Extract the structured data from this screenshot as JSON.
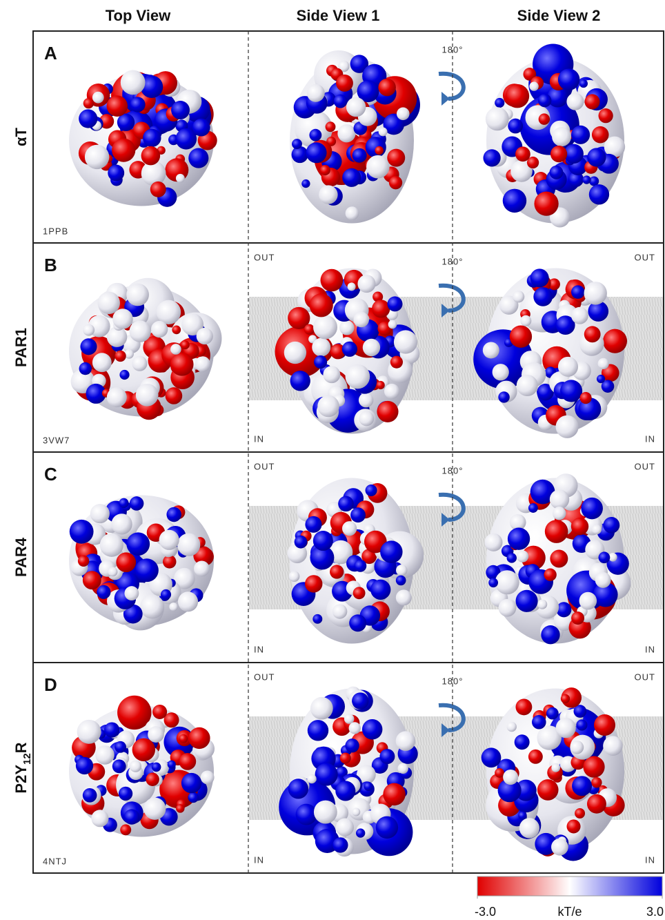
{
  "columns": [
    "Top View",
    "Side View 1",
    "Side View 2"
  ],
  "rows": [
    {
      "letter": "A",
      "label_parts": [
        "αT"
      ],
      "pdb": "1PPB",
      "rotation": "180°"
    },
    {
      "letter": "B",
      "label_parts": [
        "PAR1"
      ],
      "pdb": "3VW7",
      "rotation": "180°",
      "side1": {
        "out": "OUT",
        "in": "IN"
      },
      "side2": {
        "out": "OUT",
        "in": "IN"
      }
    },
    {
      "letter": "C",
      "label_parts": [
        "PAR4"
      ],
      "rotation": "180°",
      "side1": {
        "out": "OUT",
        "in": "IN"
      },
      "side2": {
        "out": "OUT",
        "in": "IN"
      }
    },
    {
      "letter": "D",
      "label_parts": [
        "P2Y",
        "12",
        "R"
      ],
      "pdb": "4NTJ",
      "rotation": "180°",
      "side1": {
        "out": "OUT",
        "in": "IN"
      },
      "side2": {
        "out": "OUT",
        "in": "IN"
      }
    }
  ],
  "colorbar": {
    "label": "kT/e",
    "range": [
      -3,
      3
    ],
    "ticks": [
      {
        "value": -3,
        "label": "-3.0"
      },
      {
        "value": 3,
        "label": "3.0"
      }
    ],
    "colors": [
      "#e00000",
      "#ffffff",
      "#0000dd"
    ]
  }
}
